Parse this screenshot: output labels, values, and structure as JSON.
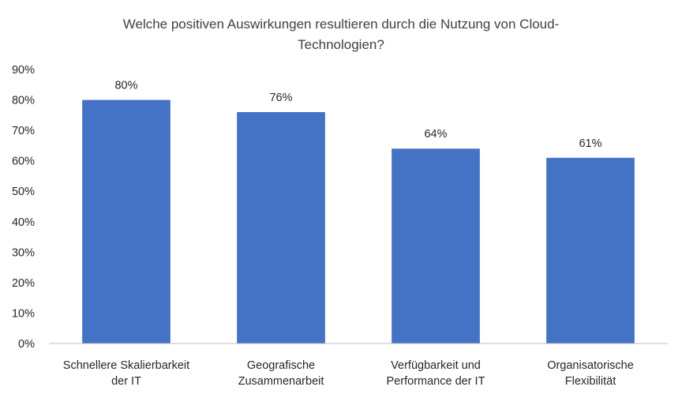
{
  "chart_data": {
    "type": "bar",
    "title_lines": [
      "Welche positiven Auswirkungen resultieren durch die Nutzung von Cloud-",
      "Technologien?"
    ],
    "categories": [
      [
        "Schnellere Skalierbarkeit",
        "der IT"
      ],
      [
        "Geografische",
        "Zusammenarbeit"
      ],
      [
        "Verfügbarkeit und",
        "Performance der IT"
      ],
      [
        "Organisatorische",
        "Flexibilität"
      ]
    ],
    "values": [
      80,
      76,
      64,
      61
    ],
    "value_labels": [
      "80%",
      "76%",
      "64%",
      "61%"
    ],
    "ylim": [
      0,
      90
    ],
    "yticks": [
      "0%",
      "10%",
      "20%",
      "30%",
      "40%",
      "50%",
      "60%",
      "70%",
      "80%",
      "90%"
    ],
    "bar_color": "#4472C4",
    "axis_color": "#BFBFBF",
    "grid": false
  }
}
